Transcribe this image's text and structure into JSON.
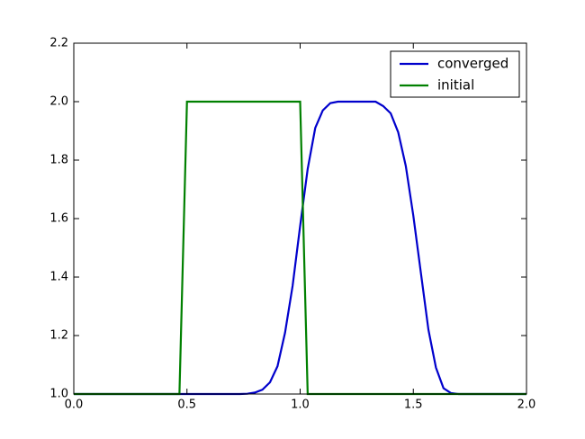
{
  "chart_data": {
    "type": "line",
    "x": [
      0,
      0.0333,
      0.0667,
      0.1,
      0.1333,
      0.1667,
      0.2,
      0.2333,
      0.2667,
      0.3,
      0.3333,
      0.3667,
      0.4,
      0.4333,
      0.4667,
      0.5,
      0.5333,
      0.5667,
      0.6,
      0.6333,
      0.6667,
      0.7,
      0.7333,
      0.7667,
      0.8,
      0.8333,
      0.8667,
      0.9,
      0.9333,
      0.9667,
      1.0,
      1.0333,
      1.0667,
      1.1,
      1.1333,
      1.1667,
      1.2,
      1.2333,
      1.2667,
      1.3,
      1.3333,
      1.3667,
      1.4,
      1.4333,
      1.4667,
      1.5,
      1.5333,
      1.5667,
      1.6,
      1.6333,
      1.6667,
      1.7,
      1.7333,
      1.7667,
      1.8,
      1.8333,
      1.8667,
      1.9,
      1.9333,
      1.9667,
      2.0
    ],
    "series": [
      {
        "name": "converged",
        "color": "#0000cc",
        "values": [
          1,
          1,
          1,
          1,
          1,
          1,
          1,
          1,
          1,
          1,
          1,
          1,
          1,
          1,
          1,
          1,
          1,
          1,
          1,
          1,
          1,
          1,
          1,
          1.001,
          1.005,
          1.015,
          1.04,
          1.095,
          1.21,
          1.37,
          1.575,
          1.77,
          1.91,
          1.97,
          1.995,
          2,
          2,
          2,
          2,
          2,
          2,
          1.985,
          1.96,
          1.895,
          1.78,
          1.61,
          1.415,
          1.22,
          1.09,
          1.02,
          1.003,
          1,
          1,
          1,
          1,
          1,
          1,
          1,
          1,
          1,
          1
        ]
      },
      {
        "name": "initial",
        "color": "#008000",
        "values": [
          1,
          1,
          1,
          1,
          1,
          1,
          1,
          1,
          1,
          1,
          1,
          1,
          1,
          1,
          1,
          2,
          2,
          2,
          2,
          2,
          2,
          2,
          2,
          2,
          2,
          2,
          2,
          2,
          2,
          2,
          2,
          1,
          1,
          1,
          1,
          1,
          1,
          1,
          1,
          1,
          1,
          1,
          1,
          1,
          1,
          1,
          1,
          1,
          1,
          1,
          1,
          1,
          1,
          1,
          1,
          1,
          1,
          1,
          1,
          1,
          1
        ]
      }
    ],
    "xlim": [
      0,
      2
    ],
    "ylim": [
      1,
      2.2
    ],
    "xticks": [
      {
        "value": 0,
        "label": "0.0"
      },
      0.5,
      {
        "value": 1,
        "label": "1.0"
      },
      1.5,
      {
        "value": 2,
        "label": "2.0"
      }
    ],
    "yticks": [
      {
        "value": 1,
        "label": "1.0"
      },
      1.2,
      1.4,
      1.6,
      1.8,
      {
        "value": 2,
        "label": "2.0"
      },
      2.2
    ],
    "legend": "upper right"
  }
}
